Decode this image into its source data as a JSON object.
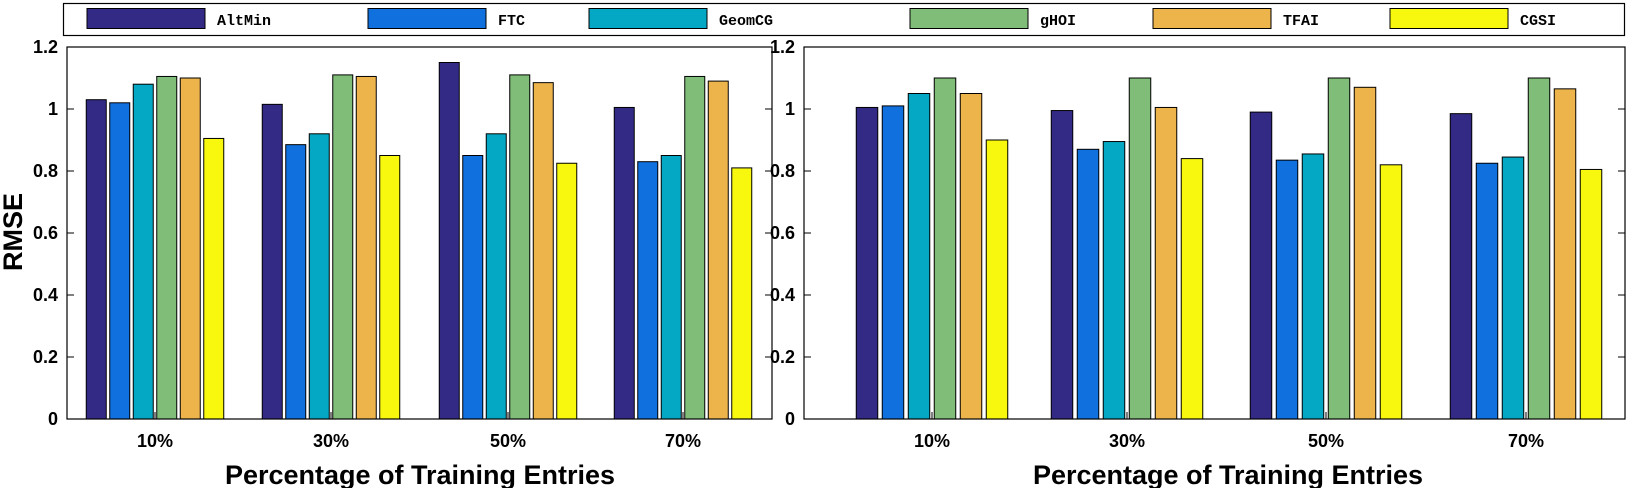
{
  "chart_data": [
    {
      "type": "bar",
      "categories": [
        "10%",
        "30%",
        "50%",
        "70%"
      ],
      "series": [
        {
          "name": "AltMin",
          "values": [
            1.03,
            1.015,
            1.15,
            1.005
          ]
        },
        {
          "name": "FTC",
          "values": [
            1.02,
            0.885,
            0.85,
            0.83
          ]
        },
        {
          "name": "GeomCG",
          "values": [
            1.08,
            0.92,
            0.92,
            0.85
          ]
        },
        {
          "name": "gHOI",
          "values": [
            1.105,
            1.11,
            1.11,
            1.105
          ]
        },
        {
          "name": "TFAI",
          "values": [
            1.1,
            1.105,
            1.085,
            1.09
          ]
        },
        {
          "name": "CGSI",
          "values": [
            0.905,
            0.85,
            0.825,
            0.81
          ]
        }
      ],
      "xlabel": "Percentage of Training Entries",
      "ylabel": "RMSE",
      "ylim": [
        0,
        1.2
      ],
      "yticks": [
        "0",
        "0.2",
        "0.4",
        "0.6",
        "0.8",
        "1",
        "1.2"
      ]
    },
    {
      "type": "bar",
      "categories": [
        "10%",
        "30%",
        "50%",
        "70%"
      ],
      "series": [
        {
          "name": "AltMin",
          "values": [
            1.005,
            0.995,
            0.99,
            0.985
          ]
        },
        {
          "name": "FTC",
          "values": [
            1.01,
            0.87,
            0.835,
            0.825
          ]
        },
        {
          "name": "GeomCG",
          "values": [
            1.05,
            0.895,
            0.855,
            0.845
          ]
        },
        {
          "name": "gHOI",
          "values": [
            1.1,
            1.1,
            1.1,
            1.1
          ]
        },
        {
          "name": "TFAI",
          "values": [
            1.05,
            1.005,
            1.07,
            1.065
          ]
        },
        {
          "name": "CGSI",
          "values": [
            0.9,
            0.84,
            0.82,
            0.805
          ]
        }
      ],
      "xlabel": "Percentage of Training Entries",
      "ylabel": "",
      "ylim": [
        0,
        1.2
      ],
      "yticks": [
        "0",
        "0.2",
        "0.4",
        "0.6",
        "0.8",
        "1",
        "1.2"
      ]
    }
  ],
  "legend": {
    "placement": "top",
    "items": [
      "AltMin",
      "FTC",
      "GeomCG",
      "gHOI",
      "TFAI",
      "CGSI"
    ]
  },
  "colors": {
    "AltMin": "#332A85",
    "FTC": "#0F70DE",
    "GeomCG": "#05A8C4",
    "gHOI": "#7FBD79",
    "TFAI": "#EDB44C",
    "CGSI": "#F8F80F"
  }
}
